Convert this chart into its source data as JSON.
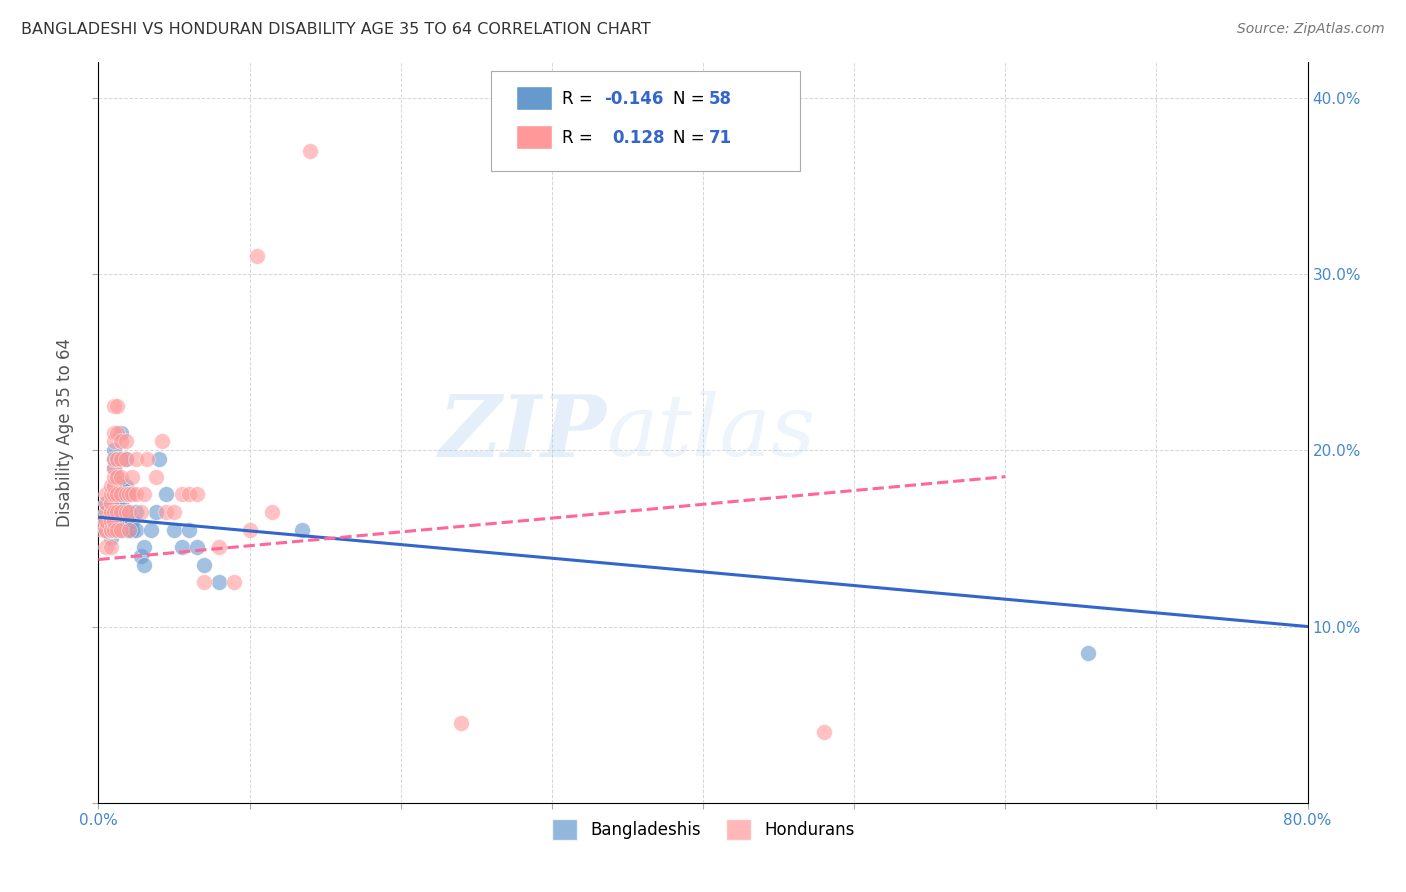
{
  "title": "BANGLADESHI VS HONDURAN DISABILITY AGE 35 TO 64 CORRELATION CHART",
  "source": "Source: ZipAtlas.com",
  "ylabel": "Disability Age 35 to 64",
  "xlim": [
    0.0,
    0.8
  ],
  "ylim": [
    0.0,
    0.42
  ],
  "xticks": [
    0.0,
    0.1,
    0.2,
    0.3,
    0.4,
    0.5,
    0.6,
    0.7,
    0.8
  ],
  "yticks": [
    0.0,
    0.1,
    0.2,
    0.3,
    0.4
  ],
  "blue_color": "#6699CC",
  "pink_color": "#FF9999",
  "blue_line_color": "#3366CC",
  "pink_line_color": "#FF6699",
  "watermark_zip": "ZIP",
  "watermark_atlas": "atlas",
  "background_color": "#FFFFFF",
  "grid_color": "#CCCCCC",
  "blue_scatter": [
    [
      0.005,
      0.155
    ],
    [
      0.005,
      0.16
    ],
    [
      0.005,
      0.165
    ],
    [
      0.005,
      0.17
    ],
    [
      0.008,
      0.15
    ],
    [
      0.008,
      0.155
    ],
    [
      0.008,
      0.16
    ],
    [
      0.008,
      0.165
    ],
    [
      0.008,
      0.17
    ],
    [
      0.01,
      0.155
    ],
    [
      0.01,
      0.16
    ],
    [
      0.01,
      0.165
    ],
    [
      0.01,
      0.175
    ],
    [
      0.01,
      0.18
    ],
    [
      0.01,
      0.19
    ],
    [
      0.01,
      0.195
    ],
    [
      0.01,
      0.2
    ],
    [
      0.012,
      0.155
    ],
    [
      0.012,
      0.16
    ],
    [
      0.012,
      0.165
    ],
    [
      0.012,
      0.17
    ],
    [
      0.012,
      0.175
    ],
    [
      0.012,
      0.185
    ],
    [
      0.012,
      0.195
    ],
    [
      0.015,
      0.155
    ],
    [
      0.015,
      0.165
    ],
    [
      0.015,
      0.17
    ],
    [
      0.015,
      0.175
    ],
    [
      0.015,
      0.18
    ],
    [
      0.015,
      0.195
    ],
    [
      0.015,
      0.21
    ],
    [
      0.018,
      0.155
    ],
    [
      0.018,
      0.16
    ],
    [
      0.018,
      0.175
    ],
    [
      0.018,
      0.18
    ],
    [
      0.018,
      0.195
    ],
    [
      0.02,
      0.155
    ],
    [
      0.02,
      0.165
    ],
    [
      0.02,
      0.175
    ],
    [
      0.022,
      0.155
    ],
    [
      0.022,
      0.16
    ],
    [
      0.025,
      0.155
    ],
    [
      0.025,
      0.165
    ],
    [
      0.028,
      0.14
    ],
    [
      0.03,
      0.135
    ],
    [
      0.03,
      0.145
    ],
    [
      0.035,
      0.155
    ],
    [
      0.038,
      0.165
    ],
    [
      0.04,
      0.195
    ],
    [
      0.045,
      0.175
    ],
    [
      0.05,
      0.155
    ],
    [
      0.055,
      0.145
    ],
    [
      0.06,
      0.155
    ],
    [
      0.065,
      0.145
    ],
    [
      0.07,
      0.135
    ],
    [
      0.08,
      0.125
    ],
    [
      0.135,
      0.155
    ],
    [
      0.655,
      0.085
    ]
  ],
  "pink_scatter": [
    [
      0.003,
      0.155
    ],
    [
      0.003,
      0.16
    ],
    [
      0.005,
      0.145
    ],
    [
      0.005,
      0.155
    ],
    [
      0.005,
      0.16
    ],
    [
      0.005,
      0.165
    ],
    [
      0.005,
      0.17
    ],
    [
      0.005,
      0.175
    ],
    [
      0.008,
      0.145
    ],
    [
      0.008,
      0.155
    ],
    [
      0.008,
      0.16
    ],
    [
      0.008,
      0.165
    ],
    [
      0.008,
      0.17
    ],
    [
      0.008,
      0.175
    ],
    [
      0.008,
      0.18
    ],
    [
      0.008,
      0.155
    ],
    [
      0.01,
      0.155
    ],
    [
      0.01,
      0.16
    ],
    [
      0.01,
      0.165
    ],
    [
      0.01,
      0.175
    ],
    [
      0.01,
      0.18
    ],
    [
      0.01,
      0.185
    ],
    [
      0.01,
      0.19
    ],
    [
      0.01,
      0.195
    ],
    [
      0.01,
      0.205
    ],
    [
      0.01,
      0.21
    ],
    [
      0.01,
      0.225
    ],
    [
      0.012,
      0.155
    ],
    [
      0.012,
      0.165
    ],
    [
      0.012,
      0.175
    ],
    [
      0.012,
      0.185
    ],
    [
      0.012,
      0.195
    ],
    [
      0.012,
      0.21
    ],
    [
      0.012,
      0.225
    ],
    [
      0.015,
      0.155
    ],
    [
      0.015,
      0.165
    ],
    [
      0.015,
      0.175
    ],
    [
      0.015,
      0.185
    ],
    [
      0.015,
      0.195
    ],
    [
      0.015,
      0.205
    ],
    [
      0.018,
      0.165
    ],
    [
      0.018,
      0.175
    ],
    [
      0.018,
      0.195
    ],
    [
      0.018,
      0.205
    ],
    [
      0.02,
      0.155
    ],
    [
      0.02,
      0.165
    ],
    [
      0.02,
      0.175
    ],
    [
      0.022,
      0.175
    ],
    [
      0.022,
      0.185
    ],
    [
      0.025,
      0.175
    ],
    [
      0.025,
      0.195
    ],
    [
      0.028,
      0.165
    ],
    [
      0.03,
      0.175
    ],
    [
      0.032,
      0.195
    ],
    [
      0.038,
      0.185
    ],
    [
      0.042,
      0.205
    ],
    [
      0.045,
      0.165
    ],
    [
      0.05,
      0.165
    ],
    [
      0.055,
      0.175
    ],
    [
      0.06,
      0.175
    ],
    [
      0.065,
      0.175
    ],
    [
      0.07,
      0.125
    ],
    [
      0.08,
      0.145
    ],
    [
      0.09,
      0.125
    ],
    [
      0.1,
      0.155
    ],
    [
      0.105,
      0.31
    ],
    [
      0.115,
      0.165
    ],
    [
      0.14,
      0.37
    ],
    [
      0.24,
      0.045
    ],
    [
      0.48,
      0.04
    ]
  ]
}
